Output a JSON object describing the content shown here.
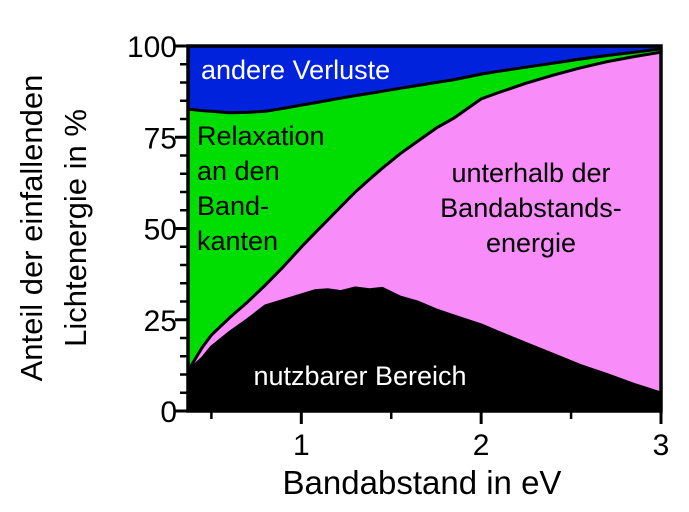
{
  "chart_data": {
    "type": "area",
    "stacked": true,
    "title": "",
    "xlabel": "Bandabstand in eV",
    "ylabel": "Anteil der einfallenden Lichtenergie in %",
    "ylabel_lines": [
      "Anteil der einfallenden",
      "Lichtenergie in %"
    ],
    "x_range": [
      0.37,
      3.0
    ],
    "y_range": [
      0,
      100
    ],
    "x_major_ticks": [
      1,
      2,
      3
    ],
    "x_minor_ticks": [
      0.5,
      1.5,
      2.5
    ],
    "y_major_ticks": [
      0,
      25,
      50,
      75,
      100
    ],
    "y_minor_ticks": [
      5,
      10,
      15,
      20,
      30,
      35,
      40,
      45,
      55,
      60,
      65,
      70,
      80,
      85,
      90,
      95
    ],
    "grid": false,
    "legend_position": "labels drawn inside stacked areas",
    "x": [
      0.37,
      0.45,
      0.5,
      0.6,
      0.7,
      0.8,
      0.9,
      1.0,
      1.08,
      1.15,
      1.22,
      1.3,
      1.38,
      1.45,
      1.55,
      1.65,
      1.75,
      1.85,
      2.0,
      2.1,
      2.25,
      2.4,
      2.55,
      2.7,
      2.85,
      3.0
    ],
    "series": [
      {
        "name": "nutzbarer Bereich",
        "color": "#000000",
        "cumulative_top": [
          11,
          14.5,
          17.5,
          21.5,
          25,
          28.8,
          30.3,
          31.8,
          33,
          33.2,
          32.7,
          33.7,
          33.2,
          33.6,
          31.2,
          29.8,
          27.7,
          26,
          23.6,
          21.5,
          18.5,
          15.5,
          12.5,
          10,
          7.3,
          4.9
        ]
      },
      {
        "name": "unterhalb der Bandabstandsenergie",
        "color": "#f88cf8",
        "cumulative_top": [
          11,
          17.5,
          20.8,
          25.5,
          29.8,
          34.5,
          39.5,
          44.9,
          49,
          52.5,
          56,
          60,
          63.5,
          66.5,
          70.5,
          74,
          77.5,
          80.3,
          85.5,
          87.3,
          89.8,
          92,
          94,
          95.7,
          97.1,
          98.3
        ]
      },
      {
        "name": "Relaxation an den Bandkanten",
        "color": "#00dd00",
        "cumulative_top": [
          82.7,
          82.3,
          82.1,
          81.7,
          81.8,
          82.1,
          82.9,
          83.8,
          84.5,
          85.1,
          85.7,
          86.4,
          87,
          87.6,
          88.4,
          89.2,
          90,
          90.8,
          92.3,
          93.1,
          94.2,
          95.3,
          96.4,
          97.4,
          98.3,
          99.2
        ]
      },
      {
        "name": "andere Verluste",
        "color": "#0022dd",
        "cumulative_top": 100
      }
    ],
    "boundary_line_color": "#000000"
  },
  "labels": {
    "andere_verluste": "andere Verluste",
    "relaxation": [
      "Relaxation",
      "an den",
      "Band-",
      "kanten"
    ],
    "unterhalb": [
      "unterhalb der",
      "Bandabstands-",
      "energie"
    ],
    "nutzbar": "nutzbarer Bereich"
  },
  "axes": {
    "x_title": "Bandabstand in eV",
    "y_title_lines": [
      "Anteil der einfallenden",
      "Lichtenergie in %"
    ],
    "x_tick_labels": [
      "1",
      "2",
      "3"
    ],
    "y_tick_labels": [
      "0",
      "25",
      "50",
      "75",
      "100"
    ]
  }
}
